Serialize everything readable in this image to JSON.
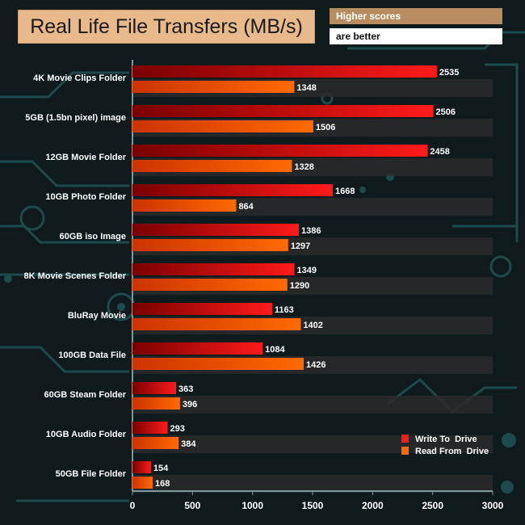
{
  "colors": {
    "background": "#0e1a1c",
    "circuit": "#1f4a4c",
    "band": "#2a2a2a",
    "write_start": "#7a0000",
    "write_end": "#ff1a1a",
    "read_start": "#cc3300",
    "read_end": "#ff6a00",
    "text": "#ffffff"
  },
  "chart_data": {
    "type": "bar",
    "orientation": "horizontal",
    "title": "Real Life File Transfers (MB/s)",
    "note_line1": "Higher scores",
    "note_line2": "are better",
    "categories": [
      "4K Movie Clips Folder",
      "5GB (1.5bn pixel) image",
      "12GB Movie Folder",
      "10GB Photo Folder",
      "60GB iso Image",
      "8K Movie Scenes Folder",
      "BluRay Movie",
      "100GB Data File",
      "60GB Steam Folder",
      "10GB Audio Folder",
      "50GB File Folder"
    ],
    "series": [
      {
        "name": "Write To  Drive",
        "values": [
          2535,
          2506,
          2458,
          1668,
          1386,
          1349,
          1163,
          1084,
          363,
          293,
          154
        ]
      },
      {
        "name": "Read From  Drive",
        "values": [
          1348,
          1506,
          1328,
          864,
          1297,
          1290,
          1402,
          1426,
          396,
          384,
          168
        ]
      }
    ],
    "xlim": [
      0,
      3000
    ],
    "xticks": [
      0,
      500,
      1000,
      1500,
      2000,
      2500,
      3000
    ],
    "legend_position": "bottom-right"
  }
}
